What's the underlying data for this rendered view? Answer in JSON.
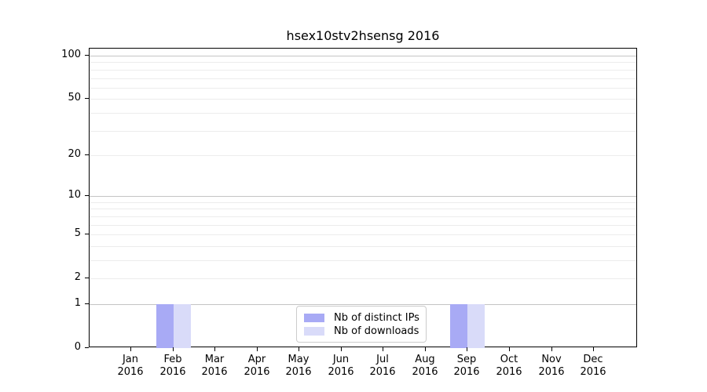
{
  "chart_data": {
    "type": "bar",
    "title": "hsex10stv2hsensg 2016",
    "categories": [
      "Jan 2016",
      "Feb 2016",
      "Mar 2016",
      "Apr 2016",
      "May 2016",
      "Jun 2016",
      "Jul 2016",
      "Aug 2016",
      "Sep 2016",
      "Oct 2016",
      "Nov 2016",
      "Dec 2016"
    ],
    "series": [
      {
        "name": "Nb of distinct IPs",
        "color": "#a8aaf5",
        "values": [
          0,
          1,
          0,
          0,
          0,
          0,
          0,
          0,
          1,
          0,
          0,
          0
        ]
      },
      {
        "name": "Nb of downloads",
        "color": "#d9dbf9",
        "values": [
          0,
          1,
          0,
          0,
          0,
          0,
          0,
          0,
          1,
          0,
          0,
          0
        ]
      }
    ],
    "xlabel": "",
    "ylabel": "",
    "yscale": "log1p",
    "ylim": [
      0,
      112
    ],
    "yticks": [
      0,
      1,
      2,
      5,
      10,
      20,
      50,
      100
    ],
    "minor_gridlines": [
      2,
      3,
      4,
      5,
      6,
      7,
      8,
      9,
      20,
      30,
      40,
      50,
      60,
      70,
      80,
      90
    ],
    "major_gridlines": [
      1,
      10,
      100
    ],
    "grid": true,
    "legend_position": "lower center"
  },
  "legend": {
    "items": [
      {
        "label": "Nb of distinct IPs"
      },
      {
        "label": "Nb of downloads"
      }
    ]
  }
}
